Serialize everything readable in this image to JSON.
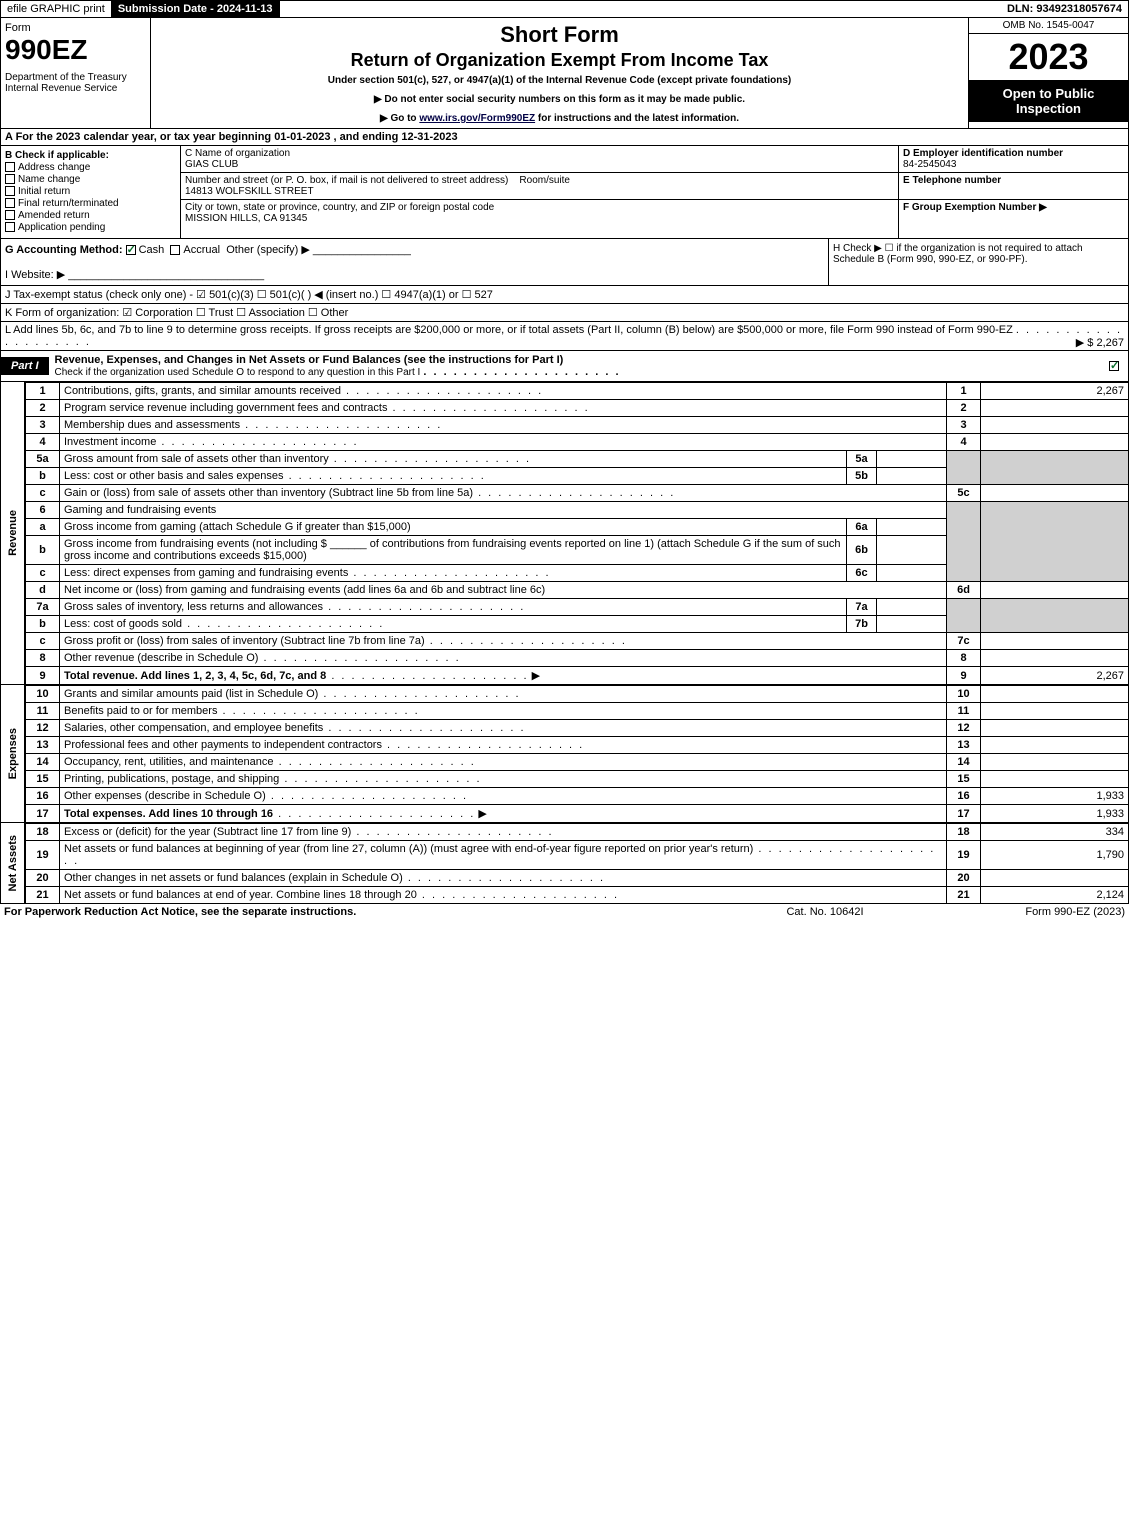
{
  "topbar": {
    "efile": "efile GRAPHIC print",
    "submission": "Submission Date - 2024-11-13",
    "dln": "DLN: 93492318057674"
  },
  "header": {
    "form_label": "Form",
    "form_number": "990EZ",
    "dept": "Department of the Treasury\nInternal Revenue Service",
    "title1": "Short Form",
    "title2": "Return of Organization Exempt From Income Tax",
    "subtitle": "Under section 501(c), 527, or 4947(a)(1) of the Internal Revenue Code (except private foundations)",
    "note1": "▶ Do not enter social security numbers on this form as it may be made public.",
    "note2_pre": "▶ Go to ",
    "note2_link": "www.irs.gov/Form990EZ",
    "note2_post": " for instructions and the latest information.",
    "omb": "OMB No. 1545-0047",
    "year": "2023",
    "open": "Open to Public Inspection"
  },
  "A": "A  For the 2023 calendar year, or tax year beginning 01-01-2023 , and ending 12-31-2023",
  "B": {
    "label": "B  Check if applicable:",
    "opts": [
      "Address change",
      "Name change",
      "Initial return",
      "Final return/terminated",
      "Amended return",
      "Application pending"
    ]
  },
  "C": {
    "name_label": "C Name of organization",
    "name": "GIAS CLUB",
    "street_label": "Number and street (or P. O. box, if mail is not delivered to street address)",
    "room_label": "Room/suite",
    "street": "14813 WOLFSKILL STREET",
    "city_label": "City or town, state or province, country, and ZIP or foreign postal code",
    "city": "MISSION HILLS, CA  91345"
  },
  "D": {
    "ein_label": "D Employer identification number",
    "ein": "84-2545043",
    "tel_label": "E Telephone number",
    "group_label": "F Group Exemption Number  ▶"
  },
  "G": {
    "label": "G Accounting Method:",
    "cash": "Cash",
    "accrual": "Accrual",
    "other": "Other (specify) ▶"
  },
  "H": "H  Check ▶  ☐  if the organization is not required to attach Schedule B (Form 990, 990-EZ, or 990-PF).",
  "I": "I Website: ▶",
  "J": "J Tax-exempt status (check only one) -  ☑ 501(c)(3)  ☐ 501(c)(  ) ◀ (insert no.)  ☐ 4947(a)(1) or  ☐ 527",
  "K": "K Form of organization:  ☑ Corporation  ☐ Trust  ☐ Association  ☐ Other",
  "L_pre": "L Add lines 5b, 6c, and 7b to line 9 to determine gross receipts. If gross receipts are $200,000 or more, or if total assets (Part II, column (B) below) are $500,000 or more, file Form 990 instead of Form 990-EZ",
  "L_amt": "▶ $ 2,267",
  "part1": {
    "label": "Part I",
    "title": "Revenue, Expenses, and Changes in Net Assets or Fund Balances (see the instructions for Part I)",
    "sub": "Check if the organization used Schedule O to respond to any question in this Part I"
  },
  "sections": {
    "revenue": "Revenue",
    "expenses": "Expenses",
    "netassets": "Net Assets"
  },
  "lines": {
    "1": {
      "d": "Contributions, gifts, grants, and similar amounts received",
      "n": "1",
      "v": "2,267"
    },
    "2": {
      "d": "Program service revenue including government fees and contracts",
      "n": "2",
      "v": ""
    },
    "3": {
      "d": "Membership dues and assessments",
      "n": "3",
      "v": ""
    },
    "4": {
      "d": "Investment income",
      "n": "4",
      "v": ""
    },
    "5a": {
      "d": "Gross amount from sale of assets other than inventory",
      "in": "5a"
    },
    "5b": {
      "d": "Less: cost or other basis and sales expenses",
      "in": "5b"
    },
    "5c": {
      "d": "Gain or (loss) from sale of assets other than inventory (Subtract line 5b from line 5a)",
      "n": "5c",
      "v": ""
    },
    "6": {
      "d": "Gaming and fundraising events"
    },
    "6a": {
      "d": "Gross income from gaming (attach Schedule G if greater than $15,000)",
      "in": "6a"
    },
    "6b": {
      "d1": "Gross income from fundraising events (not including $",
      "d2": "of contributions from fundraising events reported on line 1) (attach Schedule G if the sum of such gross income and contributions exceeds $15,000)",
      "in": "6b"
    },
    "6c": {
      "d": "Less: direct expenses from gaming and fundraising events",
      "in": "6c"
    },
    "6d": {
      "d": "Net income or (loss) from gaming and fundraising events (add lines 6a and 6b and subtract line 6c)",
      "n": "6d",
      "v": ""
    },
    "7a": {
      "d": "Gross sales of inventory, less returns and allowances",
      "in": "7a"
    },
    "7b": {
      "d": "Less: cost of goods sold",
      "in": "7b"
    },
    "7c": {
      "d": "Gross profit or (loss) from sales of inventory (Subtract line 7b from line 7a)",
      "n": "7c",
      "v": ""
    },
    "8": {
      "d": "Other revenue (describe in Schedule O)",
      "n": "8",
      "v": ""
    },
    "9": {
      "d": "Total revenue. Add lines 1, 2, 3, 4, 5c, 6d, 7c, and 8",
      "n": "9",
      "v": "2,267"
    },
    "10": {
      "d": "Grants and similar amounts paid (list in Schedule O)",
      "n": "10",
      "v": ""
    },
    "11": {
      "d": "Benefits paid to or for members",
      "n": "11",
      "v": ""
    },
    "12": {
      "d": "Salaries, other compensation, and employee benefits",
      "n": "12",
      "v": ""
    },
    "13": {
      "d": "Professional fees and other payments to independent contractors",
      "n": "13",
      "v": ""
    },
    "14": {
      "d": "Occupancy, rent, utilities, and maintenance",
      "n": "14",
      "v": ""
    },
    "15": {
      "d": "Printing, publications, postage, and shipping",
      "n": "15",
      "v": ""
    },
    "16": {
      "d": "Other expenses (describe in Schedule O)",
      "n": "16",
      "v": "1,933"
    },
    "17": {
      "d": "Total expenses. Add lines 10 through 16",
      "n": "17",
      "v": "1,933"
    },
    "18": {
      "d": "Excess or (deficit) for the year (Subtract line 17 from line 9)",
      "n": "18",
      "v": "334"
    },
    "19": {
      "d": "Net assets or fund balances at beginning of year (from line 27, column (A)) (must agree with end-of-year figure reported on prior year's return)",
      "n": "19",
      "v": "1,790"
    },
    "20": {
      "d": "Other changes in net assets or fund balances (explain in Schedule O)",
      "n": "20",
      "v": ""
    },
    "21": {
      "d": "Net assets or fund balances at end of year. Combine lines 18 through 20",
      "n": "21",
      "v": "2,124"
    }
  },
  "footer": {
    "left": "For Paperwork Reduction Act Notice, see the separate instructions.",
    "center": "Cat. No. 10642I",
    "right": "Form 990-EZ (2023)"
  },
  "colors": {
    "black": "#000000",
    "grey": "#d0d0d0",
    "check": "#0a6e2d"
  }
}
